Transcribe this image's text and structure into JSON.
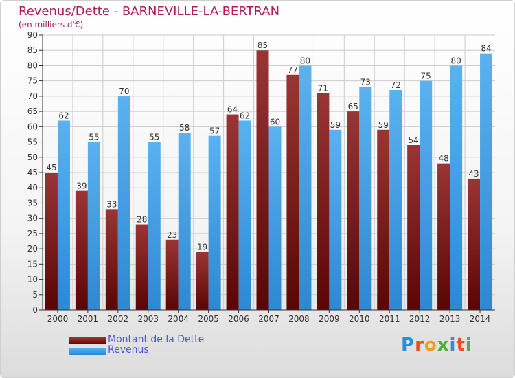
{
  "header": {
    "title": "Revenus/Dette - BARNEVILLE-LA-BERTRAN",
    "subtitle": "(en milliers d'€)"
  },
  "legend": {
    "items": [
      {
        "label": "Montant de la Dette",
        "color": "#6e0f0f"
      },
      {
        "label": "Revenus",
        "color": "#4aa3ea"
      }
    ]
  },
  "logo": {
    "text": "Proxiti",
    "letter_colors": [
      "#2a8fd6",
      "#e84f1b",
      "#f29b1d",
      "#4caf3a",
      "#2a8fd6",
      "#e84f1b",
      "#4caf3a"
    ]
  },
  "chart_data": {
    "type": "bar",
    "title": "Revenus/Dette - BARNEVILLE-LA-BERTRAN",
    "subtitle": "(en milliers d'€)",
    "categories": [
      "2000",
      "2001",
      "2002",
      "2003",
      "2004",
      "2005",
      "2006",
      "2007",
      "2008",
      "2009",
      "2010",
      "2011",
      "2012",
      "2013",
      "2014"
    ],
    "series": [
      {
        "name": "Montant de la Dette",
        "color": "#7a1a1a",
        "values": [
          45,
          39,
          33,
          28,
          23,
          19,
          64,
          85,
          77,
          71,
          65,
          59,
          54,
          48,
          43
        ]
      },
      {
        "name": "Revenus",
        "color": "#4aa3ea",
        "values": [
          62,
          55,
          70,
          55,
          58,
          57,
          62,
          60,
          80,
          59,
          73,
          72,
          75,
          80,
          84
        ]
      }
    ],
    "ylim": [
      0,
      90
    ],
    "ytick_step": 5,
    "grid": true,
    "legend_position": "bottom-left"
  }
}
